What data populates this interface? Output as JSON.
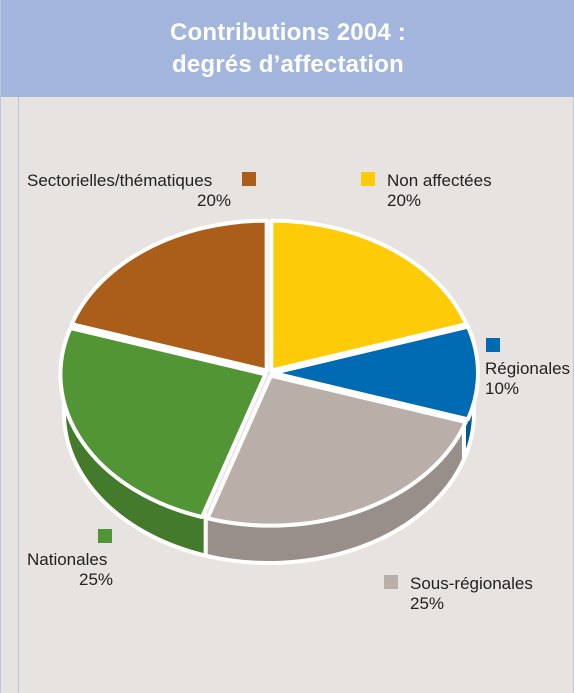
{
  "header": {
    "title_line1": "Contributions 2004 :",
    "title_line2": "degrés d’affectation"
  },
  "chart_data": {
    "type": "pie",
    "title": "Contributions 2004 : degrés d’affectation",
    "slices": [
      {
        "label": "Non affectées",
        "value": 20,
        "value_label": "20%",
        "color": "#fecb08"
      },
      {
        "label": "Régionales",
        "value": 10,
        "value_label": "10%",
        "color": "#006bb2"
      },
      {
        "label": "Sous-régionales",
        "value": 25,
        "value_label": "25%",
        "color": "#b9aea8"
      },
      {
        "label": "Nationales",
        "value": 25,
        "value_label": "25%",
        "color": "#529535"
      },
      {
        "label": "Sectorielles/thématiques",
        "value": 20,
        "value_label": "20%",
        "color": "#aa5e19"
      }
    ]
  }
}
